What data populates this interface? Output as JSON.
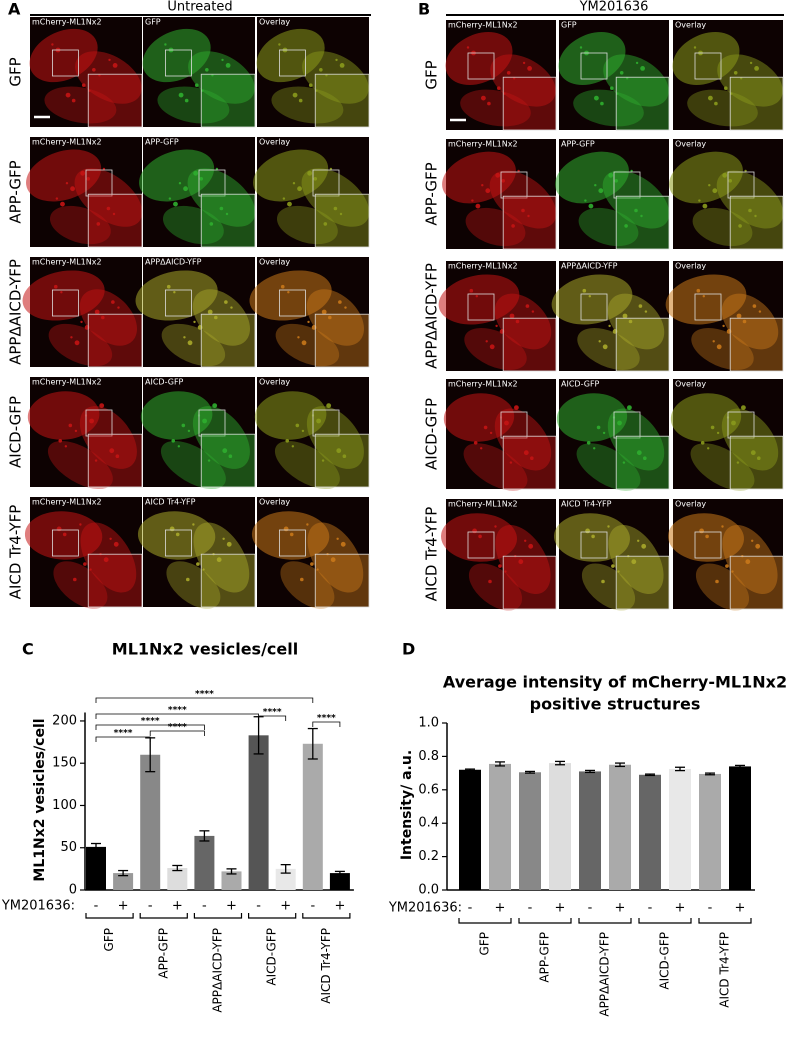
{
  "panels": [
    {
      "letter": "A",
      "title": "Untreated",
      "rows": [
        {
          "label": "GFP",
          "images": [
            "mCherry-ML1Nx2",
            "GFP",
            "Overlay"
          ]
        },
        {
          "label": "APP-GFP",
          "images": [
            "mCherry-ML1Nx2",
            "APP-GFP",
            "Overlay"
          ]
        },
        {
          "label": "APPΔAICD-YFP",
          "images": [
            "mCherry-ML1Nx2",
            "APPΔAICD-YFP",
            "Overlay"
          ]
        },
        {
          "label": "AICD-GFP",
          "images": [
            "mCherry-ML1Nx2",
            "AICD-GFP",
            "Overlay"
          ]
        },
        {
          "label": "AICD Tr4-YFP",
          "images": [
            "mCherry-ML1Nx2",
            "AICD Tr4-YFP",
            "Overlay"
          ]
        }
      ]
    },
    {
      "letter": "B",
      "title": "YM201636",
      "rows": [
        {
          "label": "GFP",
          "images": [
            "mCherry-ML1Nx2",
            "GFP",
            "Overlay"
          ]
        },
        {
          "label": "APP-GFP",
          "images": [
            "mCherry-ML1Nx2",
            "APP-GFP",
            "Overlay"
          ]
        },
        {
          "label": "APPΔAICD-YFP",
          "images": [
            "mCherry-ML1Nx2",
            "APPΔAICD-YFP",
            "Overlay"
          ]
        },
        {
          "label": "AICD-GFP",
          "images": [
            "mCherry-ML1Nx2",
            "AICD-GFP",
            "Overlay"
          ]
        },
        {
          "label": "AICD Tr4-YFP",
          "images": [
            "mCherry-ML1Nx2",
            "AICD Tr4-YFP",
            "Overlay"
          ]
        }
      ]
    }
  ],
  "chart_data": [
    {
      "type": "bar",
      "panel_label": "C",
      "title": "ML1Nx2 vesicles/cell",
      "ylabel": "ML1Nx2 vesicles/cell",
      "row_label": "YM201636:",
      "categories": [
        "-",
        "+",
        "-",
        "+",
        "-",
        "+",
        "-",
        "+",
        "-",
        "+"
      ],
      "groups": [
        "GFP",
        "APP-GFP",
        "APPΔAICD-YFP",
        "AICD-GFP",
        "AICD Tr4-YFP"
      ],
      "values": [
        51,
        20,
        160,
        26,
        64,
        22,
        183,
        25,
        173,
        20
      ],
      "errors": [
        4,
        3,
        20,
        3,
        6,
        3,
        22,
        5,
        18,
        2
      ],
      "colors": [
        "#000000",
        "#999999",
        "#888888",
        "#dddddd",
        "#666666",
        "#aaaaaa",
        "#555555",
        "#e8e8e8",
        "#aaaaaa",
        "#000000"
      ],
      "ylim": [
        0,
        210
      ],
      "yticks": [
        0,
        50,
        100,
        150,
        200
      ],
      "significance": [
        "****",
        "****",
        "****",
        "****",
        "****",
        "****",
        "****"
      ]
    },
    {
      "type": "bar",
      "panel_label": "D",
      "title": [
        "Average intensity of mCherry-ML1Nx2",
        "positive structures"
      ],
      "ylabel": "Intensity/ a.u.",
      "row_label": "YM201636:",
      "categories": [
        "-",
        "+",
        "-",
        "+",
        "-",
        "+",
        "-",
        "+",
        "-",
        "+"
      ],
      "groups": [
        "GFP",
        "APP-GFP",
        "APPΔAICD-YFP",
        "AICD-GFP",
        "AICD Tr4-YFP"
      ],
      "values": [
        0.72,
        0.755,
        0.705,
        0.76,
        0.71,
        0.75,
        0.69,
        0.725,
        0.695,
        0.74
      ],
      "errors": [
        0.004,
        0.012,
        0.005,
        0.01,
        0.006,
        0.01,
        0.004,
        0.01,
        0.005,
        0.006
      ],
      "colors": [
        "#000000",
        "#aaaaaa",
        "#888888",
        "#dddddd",
        "#666666",
        "#aaaaaa",
        "#666666",
        "#e8e8e8",
        "#aaaaaa",
        "#000000"
      ],
      "ylim": [
        0,
        1
      ],
      "yticks": [
        {
          "value": 0,
          "label": "0.0"
        },
        {
          "value": 0.2,
          "label": "0.2"
        },
        {
          "value": 0.4,
          "label": "0.4"
        },
        {
          "value": 0.6,
          "label": "0.6"
        },
        {
          "value": 0.8,
          "label": "0.8"
        },
        {
          "value": 1,
          "label": "1.0"
        }
      ]
    }
  ]
}
